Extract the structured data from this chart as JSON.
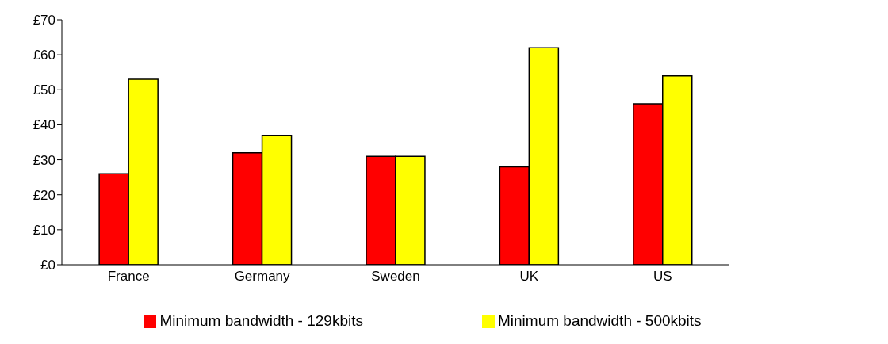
{
  "chart_data": {
    "type": "bar",
    "categories": [
      "France",
      "Germany",
      "Sweden",
      "UK",
      "US"
    ],
    "series": [
      {
        "name": "Minimum bandwidth - 129kbits",
        "color": "#ff0000",
        "values": [
          26,
          32,
          31,
          28,
          46
        ]
      },
      {
        "name": "Minimum bandwidth - 500kbits",
        "color": "#ffff00",
        "values": [
          53,
          37,
          31,
          62,
          54
        ]
      }
    ],
    "ylim": [
      0,
      70
    ],
    "yticks": [
      {
        "value": 0,
        "label": "£0"
      },
      {
        "value": 10,
        "label": "£10"
      },
      {
        "value": 20,
        "label": "£20"
      },
      {
        "value": 30,
        "label": "£30"
      },
      {
        "value": 40,
        "label": "£40"
      },
      {
        "value": 50,
        "label": "£50"
      },
      {
        "value": 60,
        "label": "£60"
      },
      {
        "value": 70,
        "label": "£70"
      }
    ],
    "grid": false,
    "legend": "bottom"
  }
}
